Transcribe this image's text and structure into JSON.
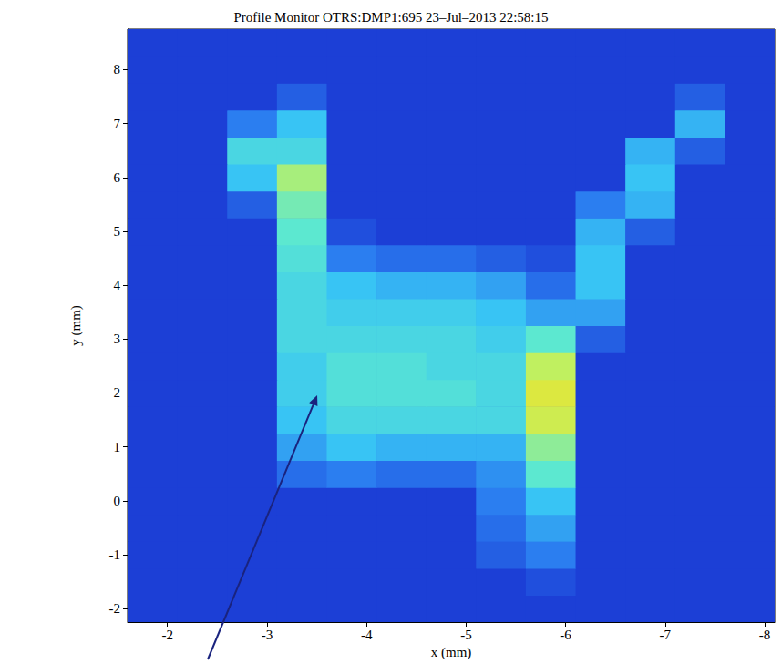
{
  "chart_data": {
    "type": "heatmap",
    "title": "Profile Monitor OTRS:DMP1:695 23–Jul–2013 22:58:15",
    "x_label": "x (mm)",
    "y_label": "y (mm)",
    "xlim": [
      -1.6,
      -8.1
    ],
    "xticks": [
      -2,
      -3,
      -4,
      -5,
      -6,
      -7,
      -8
    ],
    "ylim": [
      -2.25,
      8.75
    ],
    "yticks": [
      -2,
      -1,
      0,
      1,
      2,
      3,
      4,
      5,
      6,
      7,
      8
    ],
    "grid": false,
    "zlim": [
      0,
      10
    ],
    "x_edges": [
      -1.6,
      -2.1,
      -2.6,
      -3.1,
      -3.6,
      -4.1,
      -4.6,
      -5.1,
      -5.6,
      -6.1,
      -6.6,
      -7.1,
      -7.6,
      -8.1
    ],
    "y_edges": [
      -2.25,
      -1.75,
      -1.25,
      -0.75,
      -0.25,
      0.25,
      0.75,
      1.25,
      1.75,
      2.25,
      2.75,
      3.25,
      3.75,
      4.25,
      4.75,
      5.25,
      5.75,
      6.25,
      6.75,
      7.25,
      7.75,
      8.25,
      8.75
    ],
    "cells": [
      [
        0,
        0,
        0,
        0,
        0,
        0,
        0,
        0,
        0,
        0,
        0,
        0,
        0
      ],
      [
        0,
        0,
        0,
        0,
        0,
        0,
        0,
        0,
        0.5,
        0,
        0,
        0,
        0
      ],
      [
        0,
        0,
        0,
        0,
        0,
        0,
        0,
        1,
        2,
        0,
        0,
        0,
        0
      ],
      [
        0,
        0,
        0,
        0,
        0,
        0,
        0,
        1.5,
        3,
        0,
        0,
        0,
        0
      ],
      [
        0,
        0,
        0,
        0,
        0,
        0,
        0,
        2,
        4,
        0,
        0,
        0,
        0
      ],
      [
        0,
        0,
        0,
        1.5,
        2,
        1.5,
        1.5,
        2.5,
        6,
        0,
        0,
        0,
        0
      ],
      [
        0,
        0,
        0,
        3,
        4,
        3.5,
        3.5,
        3.5,
        7,
        0,
        0,
        0,
        0
      ],
      [
        0,
        0,
        0,
        4,
        5,
        5,
        5,
        5,
        8.5,
        0,
        0,
        0,
        0
      ],
      [
        0,
        0,
        0,
        4.5,
        5.5,
        5.5,
        5.5,
        5,
        9,
        0,
        0,
        0,
        0
      ],
      [
        0,
        0,
        0,
        4.5,
        5.5,
        5.5,
        5,
        5,
        8,
        0,
        0,
        0,
        0
      ],
      [
        0,
        0,
        0,
        5,
        5,
        5,
        5,
        4.5,
        6,
        1,
        0,
        0,
        0
      ],
      [
        0,
        0,
        0,
        5,
        4.5,
        4.5,
        4.5,
        4,
        3,
        3,
        0,
        0,
        0
      ],
      [
        0,
        0,
        0,
        5,
        4,
        3.5,
        3.5,
        3,
        1.5,
        4,
        0,
        0,
        0
      ],
      [
        0,
        0,
        0,
        5.5,
        2,
        1.5,
        1.5,
        1,
        0.5,
        4,
        0,
        0,
        0
      ],
      [
        0,
        0,
        0,
        6,
        0.5,
        0,
        0,
        0,
        0,
        3.5,
        1,
        0,
        0
      ],
      [
        0,
        0,
        1,
        6.5,
        0,
        0,
        0,
        0,
        0,
        2,
        3.5,
        0,
        0
      ],
      [
        0,
        0,
        4,
        7.5,
        0,
        0,
        0,
        0,
        0,
        0,
        4,
        0,
        0
      ],
      [
        0,
        0,
        5,
        5,
        0,
        0,
        0,
        0,
        0,
        0,
        3.5,
        1,
        0
      ],
      [
        0,
        0,
        2,
        4,
        0,
        0,
        0,
        0,
        0,
        0,
        0,
        3.5,
        0
      ],
      [
        0,
        0,
        0,
        1,
        0,
        0,
        0,
        0,
        0,
        0,
        0,
        1,
        0
      ],
      [
        0,
        0,
        0,
        0,
        0,
        0,
        0,
        0,
        0,
        0,
        0,
        0,
        0
      ],
      [
        0,
        0,
        0,
        0,
        0,
        0,
        0,
        0,
        0,
        0,
        0,
        0,
        0
      ]
    ]
  }
}
